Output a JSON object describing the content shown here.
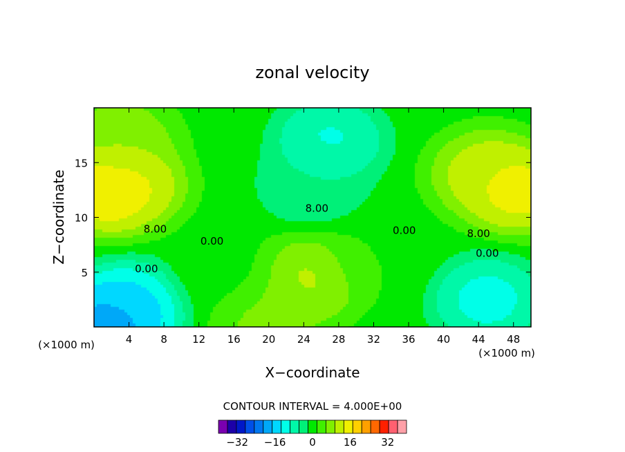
{
  "chart_data": {
    "type": "heatmap",
    "title": "zonal velocity",
    "xlabel": "X−coordinate",
    "ylabel": "Z−coordinate",
    "x_unit_left": "(×1000 m)",
    "x_unit_right": "(×1000 m)",
    "xlim": [
      0,
      50
    ],
    "ylim": [
      0,
      20
    ],
    "x_ticks": [
      4,
      8,
      12,
      16,
      20,
      24,
      28,
      32,
      36,
      40,
      44,
      48
    ],
    "y_ticks": [
      5,
      10,
      15
    ],
    "contour_interval_text": "CONTOUR INTERVAL = 4.000E+00",
    "contour_labels": [
      {
        "text": "8.00",
        "x": 7,
        "y": 8.6
      },
      {
        "text": "0.00",
        "x": 6,
        "y": 5.0
      },
      {
        "text": "0.00",
        "x": 13.5,
        "y": 7.5
      },
      {
        "text": "8.00",
        "x": 25.5,
        "y": 10.5
      },
      {
        "text": "0.00",
        "x": 35.5,
        "y": 8.5
      },
      {
        "text": "8.00",
        "x": 44,
        "y": 8.2
      },
      {
        "text": "0.00",
        "x": 45,
        "y": 6.4
      }
    ],
    "colorbar": {
      "levels": [
        -40,
        -36,
        -32,
        -28,
        -24,
        -20,
        -16,
        -12,
        -8,
        -4,
        0,
        4,
        8,
        12,
        16,
        20,
        24,
        28,
        32,
        36,
        40
      ],
      "colors": [
        "#7a00b0",
        "#1c00a8",
        "#0018c8",
        "#0050e8",
        "#0078f0",
        "#00a8f8",
        "#00d8ff",
        "#00ffe8",
        "#00f8a8",
        "#00f078",
        "#00e800",
        "#40f000",
        "#80f000",
        "#c0f000",
        "#f0f000",
        "#ffd000",
        "#ffa000",
        "#ff6800",
        "#ff2000",
        "#ff6070",
        "#ffa0a8"
      ],
      "tick_labels": [
        "−32",
        "−16",
        "0",
        "16",
        "32"
      ],
      "tick_values": [
        -32,
        -16,
        0,
        16,
        32
      ]
    },
    "field_features": [
      {
        "x": 1.5,
        "z": 12.5,
        "value": 22
      },
      {
        "x": 4,
        "z": 13,
        "value": 17
      },
      {
        "x": 3,
        "z": 17,
        "value": 12
      },
      {
        "x": 48.5,
        "z": 12.5,
        "value": 20
      },
      {
        "x": 45,
        "z": 14,
        "value": 16
      },
      {
        "x": 24.8,
        "z": 4.4,
        "value": 14
      },
      {
        "x": 20,
        "z": 0.6,
        "value": 10
      },
      {
        "x": 27,
        "z": 17,
        "value": -10
      },
      {
        "x": 25,
        "z": 13,
        "value": -4
      },
      {
        "x": 2,
        "z": 0.5,
        "value": -22
      },
      {
        "x": 4,
        "z": 2,
        "value": -14
      },
      {
        "x": 45,
        "z": 2.5,
        "value": -11
      },
      {
        "x": 32,
        "z": 6,
        "value": 4
      },
      {
        "x": 15,
        "z": 5,
        "value": 3
      }
    ]
  }
}
